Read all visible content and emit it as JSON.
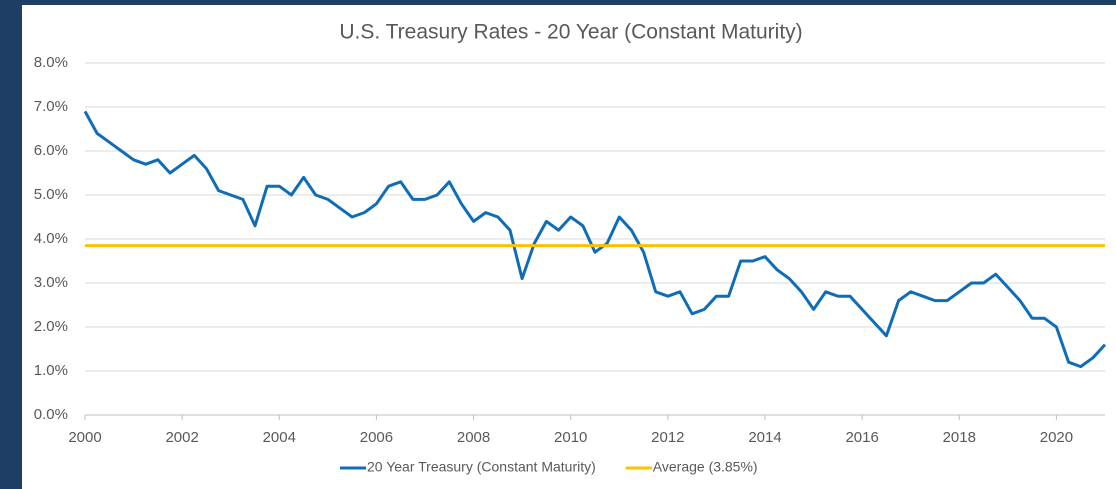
{
  "chart_data": {
    "type": "line",
    "title": "U.S. Treasury Rates - 20 Year (Constant Maturity)",
    "x": [
      2000,
      2000.25,
      2000.5,
      2000.75,
      2001,
      2001.25,
      2001.5,
      2001.75,
      2002,
      2002.25,
      2002.5,
      2002.75,
      2003,
      2003.25,
      2003.5,
      2003.75,
      2004,
      2004.25,
      2004.5,
      2004.75,
      2005,
      2005.25,
      2005.5,
      2005.75,
      2006,
      2006.25,
      2006.5,
      2006.75,
      2007,
      2007.25,
      2007.5,
      2007.75,
      2008,
      2008.25,
      2008.5,
      2008.75,
      2009,
      2009.25,
      2009.5,
      2009.75,
      2010,
      2010.25,
      2010.5,
      2010.75,
      2011,
      2011.25,
      2011.5,
      2011.75,
      2012,
      2012.25,
      2012.5,
      2012.75,
      2013,
      2013.25,
      2013.5,
      2013.75,
      2014,
      2014.25,
      2014.5,
      2014.75,
      2015,
      2015.25,
      2015.5,
      2015.75,
      2016,
      2016.25,
      2016.5,
      2016.75,
      2017,
      2017.25,
      2017.5,
      2017.75,
      2018,
      2018.25,
      2018.5,
      2018.75,
      2019,
      2019.25,
      2019.5,
      2019.75,
      2020,
      2020.25,
      2020.5,
      2020.75,
      2021
    ],
    "series": [
      {
        "name": "20 Year Treasury (Constant Maturity)",
        "color": "#0f6db8",
        "values": [
          6.9,
          6.4,
          6.2,
          6.0,
          5.8,
          5.7,
          5.8,
          5.5,
          5.7,
          5.9,
          5.6,
          5.1,
          5.0,
          4.9,
          4.3,
          5.2,
          5.2,
          5.0,
          5.4,
          5.0,
          4.9,
          4.7,
          4.5,
          4.6,
          4.8,
          5.2,
          5.3,
          4.9,
          4.9,
          5.0,
          5.3,
          4.8,
          4.4,
          4.6,
          4.5,
          4.2,
          3.1,
          3.9,
          4.4,
          4.2,
          4.5,
          4.3,
          3.7,
          3.9,
          4.5,
          4.2,
          3.7,
          2.8,
          2.7,
          2.8,
          2.3,
          2.4,
          2.7,
          2.7,
          3.5,
          3.5,
          3.6,
          3.3,
          3.1,
          2.8,
          2.4,
          2.8,
          2.7,
          2.7,
          2.4,
          2.1,
          1.8,
          2.6,
          2.8,
          2.7,
          2.6,
          2.6,
          2.8,
          3.0,
          3.0,
          3.2,
          2.9,
          2.6,
          2.2,
          2.2,
          2.0,
          1.2,
          1.1,
          1.3,
          1.6
        ]
      },
      {
        "name": "Average (3.85%)",
        "color": "#ffc000",
        "values": [
          3.85,
          3.85,
          3.85,
          3.85,
          3.85,
          3.85,
          3.85,
          3.85,
          3.85,
          3.85,
          3.85,
          3.85,
          3.85,
          3.85,
          3.85,
          3.85,
          3.85,
          3.85,
          3.85,
          3.85,
          3.85,
          3.85,
          3.85,
          3.85,
          3.85,
          3.85,
          3.85,
          3.85,
          3.85,
          3.85,
          3.85,
          3.85,
          3.85,
          3.85,
          3.85,
          3.85,
          3.85,
          3.85,
          3.85,
          3.85,
          3.85,
          3.85,
          3.85,
          3.85,
          3.85,
          3.85,
          3.85,
          3.85,
          3.85,
          3.85,
          3.85,
          3.85,
          3.85,
          3.85,
          3.85,
          3.85,
          3.85,
          3.85,
          3.85,
          3.85,
          3.85,
          3.85,
          3.85,
          3.85,
          3.85,
          3.85,
          3.85,
          3.85,
          3.85,
          3.85,
          3.85,
          3.85,
          3.85,
          3.85,
          3.85,
          3.85,
          3.85,
          3.85,
          3.85,
          3.85,
          3.85,
          3.85,
          3.85,
          3.85,
          3.85
        ]
      }
    ],
    "xlim": [
      2000,
      2021
    ],
    "xticks": [
      2000,
      2002,
      2004,
      2006,
      2008,
      2010,
      2012,
      2014,
      2016,
      2018,
      2020
    ],
    "ylim": [
      0,
      8
    ],
    "yticks": [
      {
        "value": 0,
        "label": "0.0%"
      },
      {
        "value": 1,
        "label": "1.0%"
      },
      {
        "value": 2,
        "label": "2.0%"
      },
      {
        "value": 3,
        "label": "3.0%"
      },
      {
        "value": 4,
        "label": "4.0%"
      },
      {
        "value": 5,
        "label": "5.0%"
      },
      {
        "value": 6,
        "label": "6.0%"
      },
      {
        "value": 7,
        "label": "7.0%"
      },
      {
        "value": 8,
        "label": "8.0%"
      }
    ],
    "grid": true,
    "legend": "bottom"
  }
}
